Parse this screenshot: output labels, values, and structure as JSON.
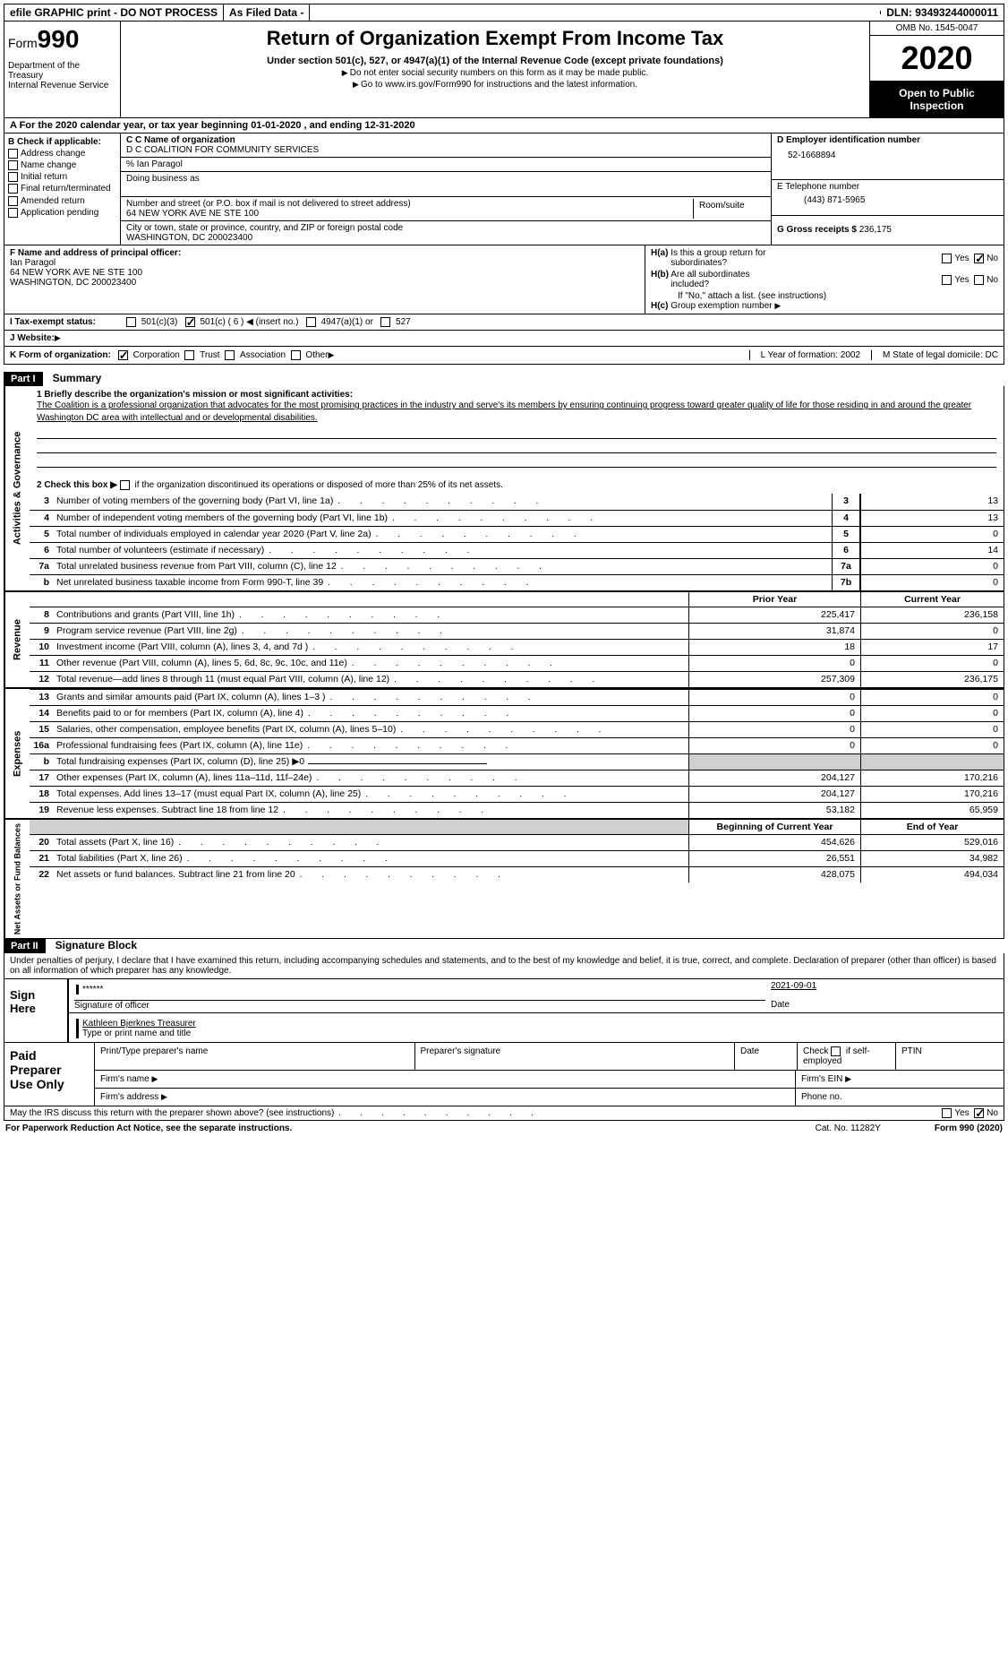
{
  "top": {
    "efile": "efile GRAPHIC print - DO NOT PROCESS",
    "asfiled": "As Filed Data -",
    "dln": "DLN: 93493244000011"
  },
  "header": {
    "form_prefix": "Form",
    "form_num": "990",
    "dept": "Department of the Treasury\nInternal Revenue Service",
    "title": "Return of Organization Exempt From Income Tax",
    "sub1": "Under section 501(c), 527, or 4947(a)(1) of the Internal Revenue Code (except private foundations)",
    "sub2": "Do not enter social security numbers on this form as it may be made public.",
    "sub3_prefix": "Go to ",
    "sub3_link": "www.irs.gov/Form990",
    "sub3_suffix": " for instructions and the latest information.",
    "omb": "OMB No. 1545-0047",
    "year": "2020",
    "open": "Open to Public Inspection"
  },
  "row_a": "A  For the 2020 calendar year, or tax year beginning 01-01-2020   , and ending 12-31-2020",
  "section_b": {
    "check_label": "B Check if applicable:",
    "opts": [
      "Address change",
      "Name change",
      "Initial return",
      "Final return/terminated",
      "Amended return",
      "Application pending"
    ],
    "c_label": "C Name of organization",
    "org_name": "D C COALITION FOR COMMUNITY SERVICES",
    "pct_label": "% Ian Paragol",
    "dba_label": "Doing business as",
    "street_label": "Number and street (or P.O. box if mail is not delivered to street address)",
    "street": "64 NEW YORK AVE NE STE 100",
    "room_label": "Room/suite",
    "city_label": "City or town, state or province, country, and ZIP or foreign postal code",
    "city": "WASHINGTON, DC  200023400",
    "d_label": "D Employer identification number",
    "ein": "52-1668894",
    "e_label": "E Telephone number",
    "phone": "(443) 871-5965",
    "g_label": "G Gross receipts $",
    "g_val": "236,175"
  },
  "section_f": {
    "f_label": "F  Name and address of principal officer:",
    "f_name": "Ian Paragol",
    "f_addr1": "64 NEW YORK AVE NE STE 100",
    "f_addr2": "WASHINGTON, DC  200023400",
    "ha": "H(a)  Is this a group return for subordinates?",
    "hb": "H(b)  Are all subordinates included?",
    "hb_note": "If \"No,\" attach a list. (see instructions)",
    "hc": "H(c)  Group exemption number",
    "yes": "Yes",
    "no": "No"
  },
  "status": {
    "i_label": "I  Tax-exempt status:",
    "o1": "501(c)(3)",
    "o2": "501(c) ( 6 ) ◀ (insert no.)",
    "o3": "4947(a)(1) or",
    "o4": "527",
    "j_label": "J  Website:"
  },
  "row_k": {
    "k_label": "K Form of organization:",
    "opts": [
      "Corporation",
      "Trust",
      "Association",
      "Other"
    ],
    "l_label": "L Year of formation: 2002",
    "m_label": "M State of legal domicile: DC"
  },
  "part1": {
    "part": "Part I",
    "title": "Summary",
    "q1_label": "1  Briefly describe the organization's mission or most significant activities:",
    "mission": "The Coalition is a professional organization that advocates for the most promising practices in the industry and serve's its members by ensuring continuing progress toward greater quality of life for those residing in and around the greater Washington DC area with intellectual and or developmental disabilities.",
    "q2": "2  Check this box ▶",
    "q2_suffix": " if the organization discontinued its operations or disposed of more than 25% of its net assets.",
    "rows_gov": [
      {
        "n": "3",
        "label": "Number of voting members of the governing body (Part VI, line 1a)",
        "box": "3",
        "val": "13"
      },
      {
        "n": "4",
        "label": "Number of independent voting members of the governing body (Part VI, line 1b)",
        "box": "4",
        "val": "13"
      },
      {
        "n": "5",
        "label": "Total number of individuals employed in calendar year 2020 (Part V, line 2a)",
        "box": "5",
        "val": "0"
      },
      {
        "n": "6",
        "label": "Total number of volunteers (estimate if necessary)",
        "box": "6",
        "val": "14"
      },
      {
        "n": "7a",
        "label": "Total unrelated business revenue from Part VIII, column (C), line 12",
        "box": "7a",
        "val": "0"
      },
      {
        "n": "b",
        "label": "Net unrelated business taxable income from Form 990-T, line 39",
        "box": "7b",
        "val": "0"
      }
    ],
    "col_prior": "Prior Year",
    "col_current": "Current Year",
    "rows_rev": [
      {
        "n": "8",
        "label": "Contributions and grants (Part VIII, line 1h)",
        "v1": "225,417",
        "v2": "236,158"
      },
      {
        "n": "9",
        "label": "Program service revenue (Part VIII, line 2g)",
        "v1": "31,874",
        "v2": "0"
      },
      {
        "n": "10",
        "label": "Investment income (Part VIII, column (A), lines 3, 4, and 7d )",
        "v1": "18",
        "v2": "17"
      },
      {
        "n": "11",
        "label": "Other revenue (Part VIII, column (A), lines 5, 6d, 8c, 9c, 10c, and 11e)",
        "v1": "0",
        "v2": "0"
      },
      {
        "n": "12",
        "label": "Total revenue—add lines 8 through 11 (must equal Part VIII, column (A), line 12)",
        "v1": "257,309",
        "v2": "236,175"
      }
    ],
    "rows_exp": [
      {
        "n": "13",
        "label": "Grants and similar amounts paid (Part IX, column (A), lines 1–3 )",
        "v1": "0",
        "v2": "0"
      },
      {
        "n": "14",
        "label": "Benefits paid to or for members (Part IX, column (A), line 4)",
        "v1": "0",
        "v2": "0"
      },
      {
        "n": "15",
        "label": "Salaries, other compensation, employee benefits (Part IX, column (A), lines 5–10)",
        "v1": "0",
        "v2": "0"
      },
      {
        "n": "16a",
        "label": "Professional fundraising fees (Part IX, column (A), line 11e)",
        "v1": "0",
        "v2": "0"
      },
      {
        "n": "b",
        "label": "Total fundraising expenses (Part IX, column (D), line 25) ▶0",
        "v1": "",
        "v2": "",
        "gray": true
      },
      {
        "n": "17",
        "label": "Other expenses (Part IX, column (A), lines 11a–11d, 11f–24e)",
        "v1": "204,127",
        "v2": "170,216"
      },
      {
        "n": "18",
        "label": "Total expenses. Add lines 13–17 (must equal Part IX, column (A), line 25)",
        "v1": "204,127",
        "v2": "170,216"
      },
      {
        "n": "19",
        "label": "Revenue less expenses. Subtract line 18 from line 12",
        "v1": "53,182",
        "v2": "65,959"
      }
    ],
    "col_begin": "Beginning of Current Year",
    "col_end": "End of Year",
    "rows_net": [
      {
        "n": "20",
        "label": "Total assets (Part X, line 16)",
        "v1": "454,626",
        "v2": "529,016"
      },
      {
        "n": "21",
        "label": "Total liabilities (Part X, line 26)",
        "v1": "26,551",
        "v2": "34,982"
      },
      {
        "n": "22",
        "label": "Net assets or fund balances. Subtract line 21 from line 20",
        "v1": "428,075",
        "v2": "494,034"
      }
    ],
    "vlabels": {
      "gov": "Activities & Governance",
      "rev": "Revenue",
      "exp": "Expenses",
      "net": "Net Assets or Fund Balances"
    }
  },
  "part2": {
    "part": "Part II",
    "title": "Signature Block",
    "decl": "Under penalties of perjury, I declare that I have examined this return, including accompanying schedules and statements, and to the best of my knowledge and belief, it is true, correct, and complete. Declaration of preparer (other than officer) is based on all information of which preparer has any knowledge.",
    "sign_here": "Sign Here",
    "stars": "******",
    "sig_officer": "Signature of officer",
    "date_label": "Date",
    "date_val": "2021-09-01",
    "typed_name": "Kathleen Bjerknes Treasurer",
    "typed_label": "Type or print name and title",
    "paid": "Paid Preparer Use Only",
    "p1": "Print/Type preparer's name",
    "p2": "Preparer's signature",
    "p3": "Date",
    "p4": "Check",
    "p4b": "if self-employed",
    "p5": "PTIN",
    "firm_name": "Firm's name",
    "firm_ein": "Firm's EIN",
    "firm_addr": "Firm's address",
    "firm_phone": "Phone no."
  },
  "footer": {
    "q": "May the IRS discuss this return with the preparer shown above? (see instructions)",
    "yes": "Yes",
    "no": "No",
    "paperwork": "For Paperwork Reduction Act Notice, see the separate instructions.",
    "cat": "Cat. No. 11282Y",
    "form": "Form 990 (2020)"
  }
}
